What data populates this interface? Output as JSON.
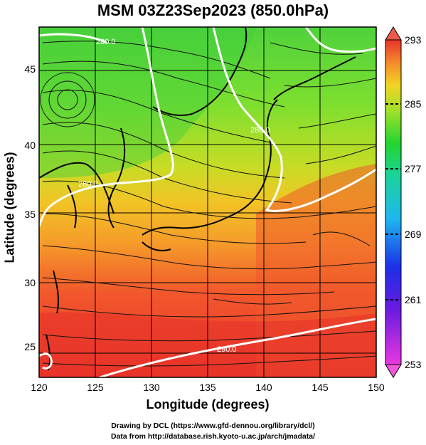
{
  "title": "MSM 03Z23Sep2023 (850.0hPa)",
  "x_axis": {
    "label": "Longitude (degrees)",
    "ticks": [
      "120",
      "125",
      "130",
      "135",
      "140",
      "145",
      "150"
    ]
  },
  "y_axis": {
    "label": "Latitude  (degrees)",
    "ticks": [
      "25",
      "30",
      "35",
      "40",
      "45"
    ]
  },
  "colorbar": {
    "ticks": [
      "293",
      "285",
      "277",
      "269",
      "261",
      "253"
    ]
  },
  "contour_labels": [
    "280.0",
    "280.0",
    "280.0",
    "290.0"
  ],
  "credits": {
    "line1": "Drawing by DCL (https://www.gfd-dennou.org/library/dcl/)",
    "line2": "Data from http://database.rish.kyoto-u.ac.jp/arch/jmadata/"
  },
  "colors": {
    "warm": "#e8332a",
    "mid": "#f4c21f",
    "cool": "#1fcf3a",
    "contour": "#ffffff"
  }
}
